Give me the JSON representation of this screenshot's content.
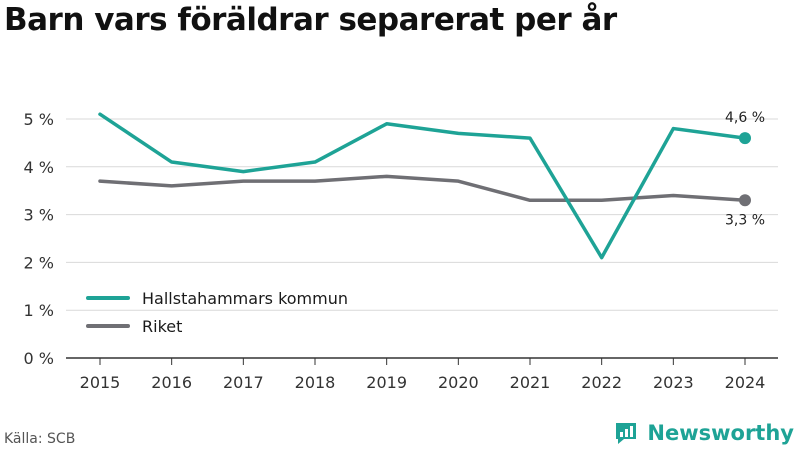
{
  "chart_data": {
    "type": "line",
    "title": "Barn vars föräldrar separerat per år",
    "x": [
      "2015",
      "2016",
      "2017",
      "2018",
      "2019",
      "2020",
      "2021",
      "2022",
      "2023",
      "2024"
    ],
    "y_ticks": [
      "0 %",
      "1 %",
      "2 %",
      "3 %",
      "4 %",
      "5 %"
    ],
    "ylim": [
      0,
      5.5
    ],
    "grid": true,
    "legend_position": "bottom-left",
    "series": [
      {
        "name": "Hallstahammars kommun",
        "color": "#1ea396",
        "values": [
          5.1,
          4.1,
          3.9,
          4.1,
          4.9,
          4.7,
          4.6,
          2.1,
          4.8,
          4.6
        ],
        "end_label": "4,6 %"
      },
      {
        "name": "Riket",
        "color": "#6f6f74",
        "values": [
          3.7,
          3.6,
          3.7,
          3.7,
          3.8,
          3.7,
          3.3,
          3.3,
          3.4,
          3.3
        ],
        "end_label": "3,3 %"
      }
    ]
  },
  "source": "Källa: SCB",
  "brand": {
    "name": "Newsworthy",
    "icon": "newsworthy-logo-icon",
    "color": "#1ea396"
  }
}
